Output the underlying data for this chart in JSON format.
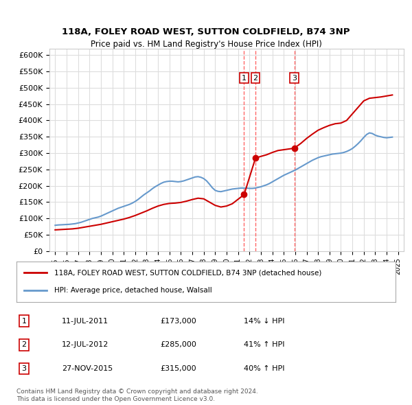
{
  "title1": "118A, FOLEY ROAD WEST, SUTTON COLDFIELD, B74 3NP",
  "title2": "Price paid vs. HM Land Registry's House Price Index (HPI)",
  "ylabel_ticks": [
    "£0",
    "£50K",
    "£100K",
    "£150K",
    "£200K",
    "£250K",
    "£300K",
    "£350K",
    "£400K",
    "£450K",
    "£500K",
    "£550K",
    "£600K"
  ],
  "ytick_values": [
    0,
    50000,
    100000,
    150000,
    200000,
    250000,
    300000,
    350000,
    400000,
    450000,
    500000,
    550000,
    600000
  ],
  "xlim_start": 1994.5,
  "xlim_end": 2025.5,
  "ylim_min": 0,
  "ylim_max": 620000,
  "hpi_color": "#6699cc",
  "price_color": "#cc0000",
  "dashed_line_color": "#ff6666",
  "background_color": "#ffffff",
  "grid_color": "#dddddd",
  "legend_label_red": "118A, FOLEY ROAD WEST, SUTTON COLDFIELD, B74 3NP (detached house)",
  "legend_label_blue": "HPI: Average price, detached house, Walsall",
  "transactions": [
    {
      "id": 1,
      "date": 2011.53,
      "price": 173000,
      "label": "1"
    },
    {
      "id": 2,
      "date": 2012.53,
      "price": 285000,
      "label": "2"
    },
    {
      "id": 3,
      "date": 2015.92,
      "price": 315000,
      "label": "3"
    }
  ],
  "transaction_table": [
    {
      "num": "1",
      "date": "11-JUL-2011",
      "price": "£173,000",
      "change": "14% ↓ HPI"
    },
    {
      "num": "2",
      "date": "12-JUL-2012",
      "price": "£285,000",
      "change": "41% ↑ HPI"
    },
    {
      "num": "3",
      "date": "27-NOV-2015",
      "price": "£315,000",
      "change": "40% ↑ HPI"
    }
  ],
  "footer1": "Contains HM Land Registry data © Crown copyright and database right 2024.",
  "footer2": "This data is licensed under the Open Government Licence v3.0.",
  "hpi_data_x": [
    1995.0,
    1995.25,
    1995.5,
    1995.75,
    1996.0,
    1996.25,
    1996.5,
    1996.75,
    1997.0,
    1997.25,
    1997.5,
    1997.75,
    1998.0,
    1998.25,
    1998.5,
    1998.75,
    1999.0,
    1999.25,
    1999.5,
    1999.75,
    2000.0,
    2000.25,
    2000.5,
    2000.75,
    2001.0,
    2001.25,
    2001.5,
    2001.75,
    2002.0,
    2002.25,
    2002.5,
    2002.75,
    2003.0,
    2003.25,
    2003.5,
    2003.75,
    2004.0,
    2004.25,
    2004.5,
    2004.75,
    2005.0,
    2005.25,
    2005.5,
    2005.75,
    2006.0,
    2006.25,
    2006.5,
    2006.75,
    2007.0,
    2007.25,
    2007.5,
    2007.75,
    2008.0,
    2008.25,
    2008.5,
    2008.75,
    2009.0,
    2009.25,
    2009.5,
    2009.75,
    2010.0,
    2010.25,
    2010.5,
    2010.75,
    2011.0,
    2011.25,
    2011.5,
    2011.75,
    2012.0,
    2012.25,
    2012.5,
    2012.75,
    2013.0,
    2013.25,
    2013.5,
    2013.75,
    2014.0,
    2014.25,
    2014.5,
    2014.75,
    2015.0,
    2015.25,
    2015.5,
    2015.75,
    2016.0,
    2016.25,
    2016.5,
    2016.75,
    2017.0,
    2017.25,
    2017.5,
    2017.75,
    2018.0,
    2018.25,
    2018.5,
    2018.75,
    2019.0,
    2019.25,
    2019.5,
    2019.75,
    2020.0,
    2020.25,
    2020.5,
    2020.75,
    2021.0,
    2021.25,
    2021.5,
    2021.75,
    2022.0,
    2022.25,
    2022.5,
    2022.75,
    2023.0,
    2023.25,
    2023.5,
    2023.75,
    2024.0,
    2024.25,
    2024.5
  ],
  "hpi_data_y": [
    79000,
    80000,
    80500,
    81000,
    81500,
    82000,
    83000,
    84000,
    86000,
    88000,
    91000,
    94000,
    97000,
    100000,
    102000,
    104000,
    107000,
    111000,
    115000,
    119000,
    123000,
    127000,
    131000,
    134000,
    137000,
    140000,
    143000,
    147000,
    152000,
    158000,
    165000,
    172000,
    178000,
    184000,
    191000,
    197000,
    202000,
    207000,
    211000,
    213000,
    214000,
    214000,
    213000,
    212000,
    213000,
    215000,
    218000,
    221000,
    224000,
    227000,
    228000,
    226000,
    222000,
    215000,
    205000,
    194000,
    186000,
    183000,
    182000,
    184000,
    186000,
    188000,
    190000,
    191000,
    192000,
    193000,
    193000,
    193000,
    192000,
    192000,
    193000,
    195000,
    197000,
    200000,
    203000,
    207000,
    212000,
    217000,
    222000,
    227000,
    232000,
    236000,
    240000,
    244000,
    248000,
    253000,
    258000,
    263000,
    268000,
    273000,
    278000,
    282000,
    286000,
    289000,
    291000,
    293000,
    295000,
    297000,
    298000,
    299000,
    300000,
    302000,
    305000,
    309000,
    314000,
    321000,
    329000,
    338000,
    348000,
    357000,
    362000,
    360000,
    355000,
    352000,
    350000,
    348000,
    347000,
    348000,
    349000
  ],
  "price_data_x": [
    1995.0,
    1995.5,
    1996.0,
    1996.5,
    1997.0,
    1997.5,
    1998.0,
    1998.5,
    1999.0,
    1999.5,
    2000.0,
    2000.5,
    2001.0,
    2001.5,
    2002.0,
    2002.5,
    2003.0,
    2003.5,
    2004.0,
    2004.5,
    2005.0,
    2005.5,
    2006.0,
    2006.5,
    2007.0,
    2007.5,
    2008.0,
    2008.5,
    2009.0,
    2009.5,
    2010.0,
    2010.5,
    2011.53,
    2012.53,
    2013.0,
    2013.5,
    2014.0,
    2014.5,
    2015.92,
    2016.5,
    2017.0,
    2017.5,
    2018.0,
    2018.5,
    2019.0,
    2019.5,
    2020.0,
    2020.5,
    2021.0,
    2021.5,
    2022.0,
    2022.5,
    2023.0,
    2023.5,
    2024.0,
    2024.5
  ],
  "price_data_y": [
    65000,
    66000,
    67000,
    68000,
    70000,
    73000,
    76000,
    79000,
    82000,
    86000,
    90000,
    94000,
    98000,
    103000,
    109000,
    116000,
    123000,
    131000,
    138000,
    143000,
    146000,
    147000,
    149000,
    153000,
    158000,
    162000,
    160000,
    150000,
    140000,
    135000,
    138000,
    145000,
    173000,
    285000,
    290000,
    295000,
    302000,
    308000,
    315000,
    330000,
    345000,
    358000,
    370000,
    378000,
    385000,
    390000,
    392000,
    400000,
    420000,
    440000,
    460000,
    468000,
    470000,
    472000,
    475000,
    478000
  ]
}
